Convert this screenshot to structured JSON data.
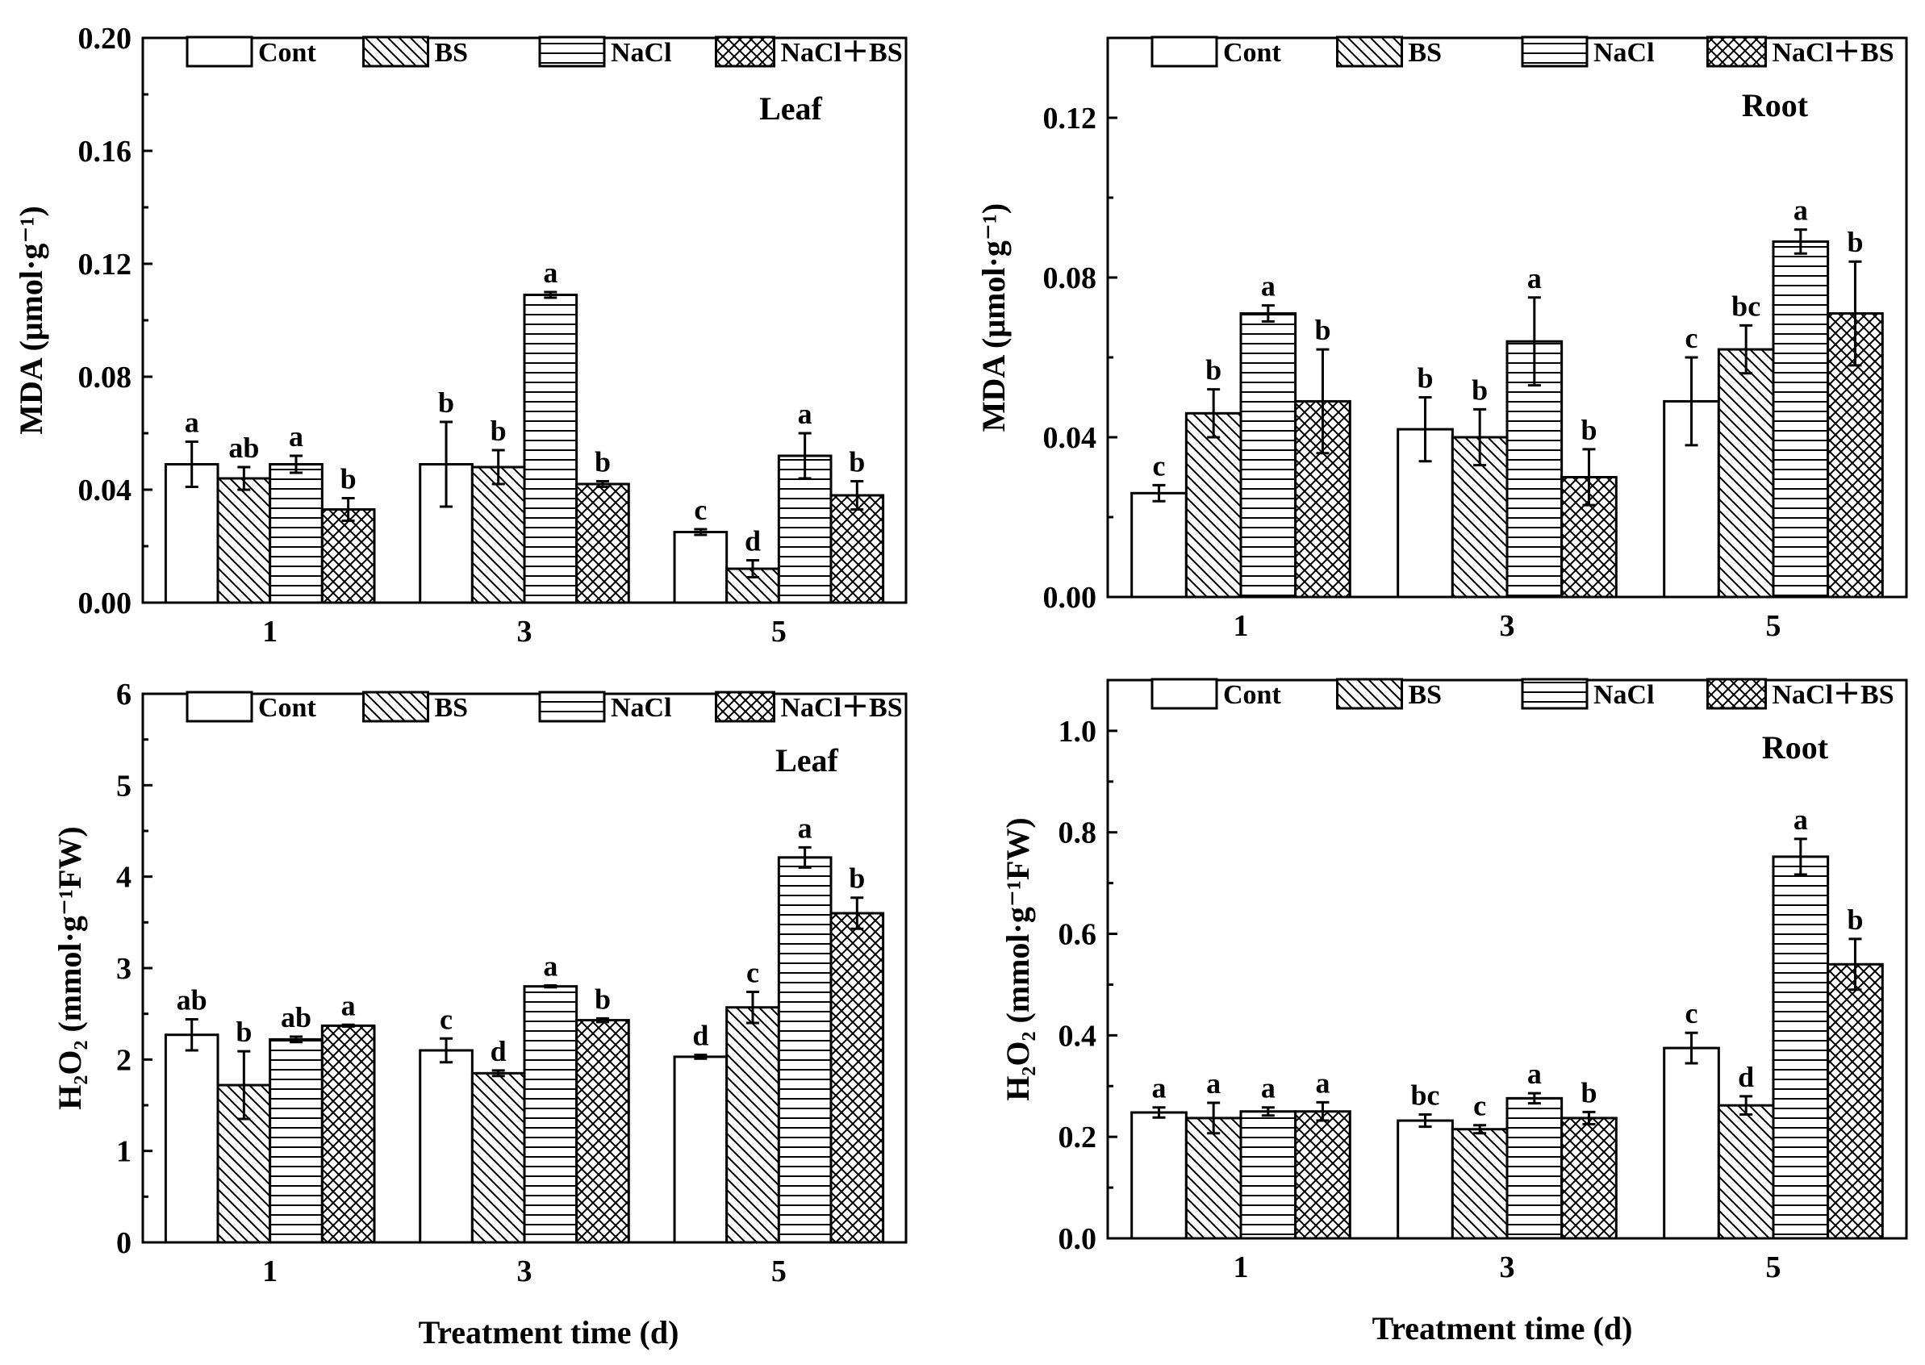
{
  "patterns": {
    "Cont": "none",
    "BS": "diag",
    "NaCl": "horiz",
    "NaCl+BS": "cross"
  },
  "shared_xlabel": "Treatment time (d)",
  "chart_data": [
    {
      "id": "mda-leaf",
      "type": "bar",
      "panel_label": "Leaf",
      "ylabel": "MDA (μmol·g⁻¹)",
      "ylim": [
        0,
        0.2
      ],
      "yticks": [
        "0.00",
        "0.04",
        "0.08",
        "0.12",
        "0.16",
        "0.20"
      ],
      "categories": [
        "1",
        "3",
        "5"
      ],
      "legend": [
        "Cont",
        "BS",
        "NaCl",
        "NaCl+BS"
      ],
      "series": [
        {
          "name": "Cont",
          "values": [
            0.049,
            0.049,
            0.025
          ],
          "errors": [
            0.008,
            0.015,
            0.001
          ],
          "labels": [
            "a",
            "b",
            "c"
          ]
        },
        {
          "name": "BS",
          "values": [
            0.044,
            0.048,
            0.012
          ],
          "errors": [
            0.004,
            0.006,
            0.003
          ],
          "labels": [
            "ab",
            "b",
            "d"
          ]
        },
        {
          "name": "NaCl",
          "values": [
            0.049,
            0.109,
            0.052
          ],
          "errors": [
            0.003,
            0.001,
            0.008
          ],
          "labels": [
            "a",
            "a",
            "a"
          ]
        },
        {
          "name": "NaCl+BS",
          "values": [
            0.033,
            0.042,
            0.038
          ],
          "errors": [
            0.004,
            0.001,
            0.005
          ],
          "labels": [
            "b",
            "b",
            "b"
          ]
        }
      ]
    },
    {
      "id": "mda-root",
      "type": "bar",
      "panel_label": "Root",
      "ylabel": "MDA (μmol·g⁻¹)",
      "ylim": [
        0,
        0.14
      ],
      "yticks": [
        "0.00",
        "0.04",
        "0.08",
        "0.12"
      ],
      "categories": [
        "1",
        "3",
        "5"
      ],
      "legend": [
        "Cont",
        "BS",
        "NaCl",
        "NaCl+BS"
      ],
      "series": [
        {
          "name": "Cont",
          "values": [
            0.026,
            0.042,
            0.049
          ],
          "errors": [
            0.002,
            0.008,
            0.011
          ],
          "labels": [
            "c",
            "b",
            "c"
          ]
        },
        {
          "name": "BS",
          "values": [
            0.046,
            0.04,
            0.062
          ],
          "errors": [
            0.006,
            0.007,
            0.006
          ],
          "labels": [
            "b",
            "b",
            "bc"
          ]
        },
        {
          "name": "NaCl",
          "values": [
            0.071,
            0.064,
            0.089
          ],
          "errors": [
            0.002,
            0.011,
            0.003
          ],
          "labels": [
            "a",
            "a",
            "a"
          ]
        },
        {
          "name": "NaCl+BS",
          "values": [
            0.049,
            0.03,
            0.071
          ],
          "errors": [
            0.013,
            0.007,
            0.013
          ],
          "labels": [
            "b",
            "b",
            "b"
          ]
        }
      ]
    },
    {
      "id": "h2o2-leaf",
      "type": "bar",
      "panel_label": "Leaf",
      "ylabel": "H₂O₂ (mmol·g⁻¹FW)",
      "ylim": [
        0,
        6
      ],
      "yticks": [
        "0",
        "1",
        "2",
        "3",
        "4",
        "5",
        "6"
      ],
      "categories": [
        "1",
        "3",
        "5"
      ],
      "legend": [
        "Cont",
        "BS",
        "NaCl",
        "NaCl+BS"
      ],
      "series": [
        {
          "name": "Cont",
          "values": [
            2.27,
            2.1,
            2.03
          ],
          "errors": [
            0.17,
            0.13,
            0.02
          ],
          "labels": [
            "ab",
            "c",
            "d"
          ]
        },
        {
          "name": "BS",
          "values": [
            1.72,
            1.85,
            2.57
          ],
          "errors": [
            0.37,
            0.03,
            0.17
          ],
          "labels": [
            "b",
            "d",
            "c"
          ]
        },
        {
          "name": "NaCl",
          "values": [
            2.22,
            2.8,
            4.21
          ],
          "errors": [
            0.03,
            0.01,
            0.11
          ],
          "labels": [
            "ab",
            "a",
            "a"
          ]
        },
        {
          "name": "NaCl+BS",
          "values": [
            2.37,
            2.43,
            3.6
          ],
          "errors": [
            0.01,
            0.02,
            0.17
          ],
          "labels": [
            "a",
            "b",
            "b"
          ]
        }
      ]
    },
    {
      "id": "h2o2-root",
      "type": "bar",
      "panel_label": "Root",
      "ylabel": "H₂O₂ (mmol·g⁻¹FW)",
      "ylim": [
        0,
        1.1
      ],
      "yticks": [
        "0.0",
        "0.2",
        "0.4",
        "0.6",
        "0.8",
        "1.0"
      ],
      "categories": [
        "1",
        "3",
        "5"
      ],
      "legend": [
        "Cont",
        "BS",
        "NaCl",
        "NaCl+BS"
      ],
      "series": [
        {
          "name": "Cont",
          "values": [
            0.248,
            0.232,
            0.375
          ],
          "errors": [
            0.01,
            0.012,
            0.03
          ],
          "labels": [
            "a",
            "bc",
            "c"
          ]
        },
        {
          "name": "BS",
          "values": [
            0.237,
            0.215,
            0.262
          ],
          "errors": [
            0.03,
            0.008,
            0.018
          ],
          "labels": [
            "a",
            "c",
            "d"
          ]
        },
        {
          "name": "NaCl",
          "values": [
            0.25,
            0.276,
            0.752
          ],
          "errors": [
            0.008,
            0.01,
            0.035
          ],
          "labels": [
            "a",
            "a",
            "a"
          ]
        },
        {
          "name": "NaCl+BS",
          "values": [
            0.25,
            0.237,
            0.54
          ],
          "errors": [
            0.018,
            0.012,
            0.05
          ],
          "labels": [
            "a",
            "b",
            "b"
          ]
        }
      ]
    }
  ]
}
